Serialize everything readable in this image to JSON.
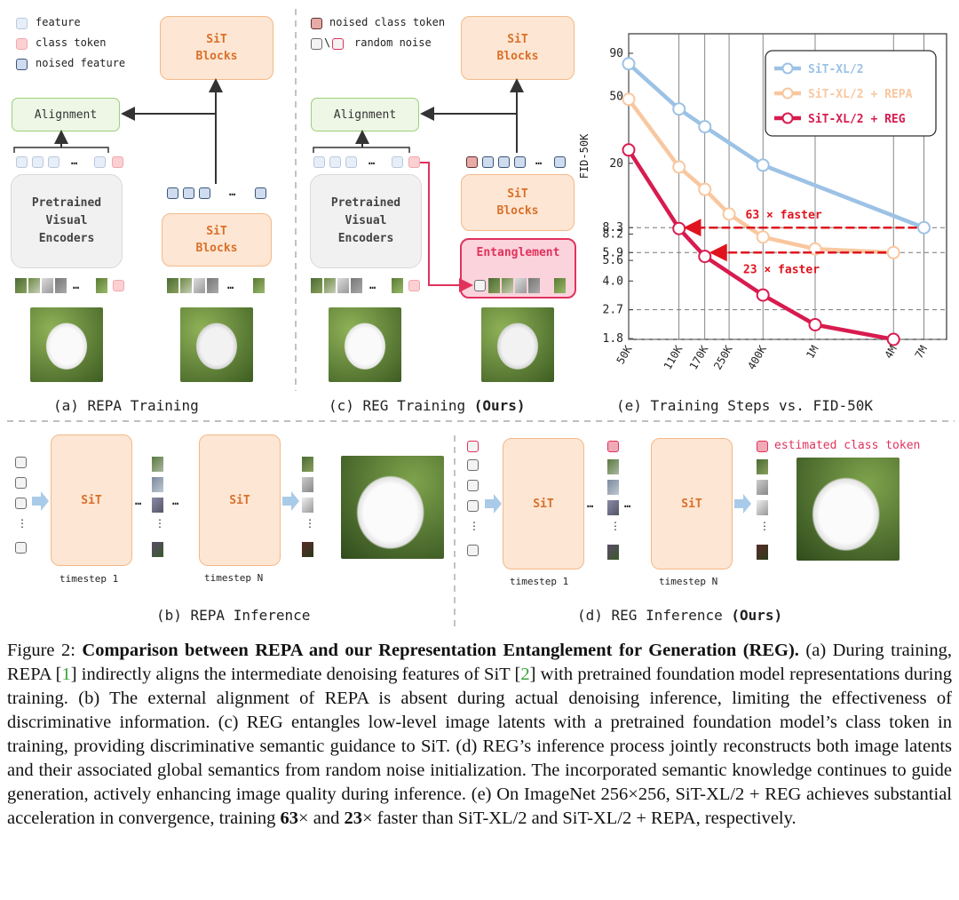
{
  "legend_a": {
    "feature": "feature",
    "class_token": "class token",
    "noised_feature": "noised feature"
  },
  "legend_c": {
    "noised_class_token": "noised class token",
    "random_noise": "random noise",
    "slash": "\\"
  },
  "blocks": {
    "sit_blocks": "SiT\nBlocks",
    "sit": "SiT",
    "alignment": "Alignment",
    "pretrained": "Pretrained\nVisual\nEncoders",
    "entanglement": "Entanglement",
    "ellipsis": "…",
    "vdots": "⋮"
  },
  "panels": {
    "a": "(a) REPA Training",
    "b": "(b) REPA Inference",
    "c_pre": "(c) REG Training ",
    "c_bold": "(Ours)",
    "d_pre": "(d) REG Inference ",
    "d_bold": "(Ours)",
    "e": "(e) Training Steps vs. FID-50K"
  },
  "inference": {
    "timestep1": "timestep 1",
    "timestepN": "timestep N",
    "estimated": "estimated class token"
  },
  "colors": {
    "blue": "#9cc2e5",
    "peach": "#f9c79f",
    "red": "#d81b4f",
    "orange_text": "#d9702a"
  },
  "chart_data": {
    "type": "line",
    "title": "",
    "xlabel": "",
    "ylabel": "FID-50K",
    "x_ticks": [
      "50K",
      "110K",
      "170K",
      "250K",
      "400K",
      "1M",
      "4M",
      "7M"
    ],
    "y_ticks": [
      90,
      50,
      20,
      8.3,
      8.2,
      5.9,
      5.6,
      4.0,
      2.7,
      1.8
    ],
    "y_tick_labels": [
      "90",
      "50",
      "20",
      "8.3",
      "8.2",
      "5.9",
      "5.6",
      "4.0",
      "2.7",
      "1.8"
    ],
    "series": [
      {
        "name": "SiT-XL/2",
        "color": "#9cc2e5",
        "x": [
          "50K",
          "110K",
          "170K",
          "400K",
          "7M"
        ],
        "values": [
          78,
          42,
          33,
          19.5,
          8.3
        ]
      },
      {
        "name": "SiT-XL/2 + REPA",
        "color": "#f9c79f",
        "x": [
          "50K",
          "110K",
          "170K",
          "250K",
          "400K",
          "1M",
          "4M"
        ],
        "values": [
          48,
          19,
          14,
          10,
          7.3,
          6.2,
          5.9
        ]
      },
      {
        "name": "SiT-XL/2 + REG",
        "color": "#d81b4f",
        "x": [
          "50K",
          "110K",
          "170K",
          "400K",
          "1M",
          "4M"
        ],
        "values": [
          24,
          8.2,
          5.6,
          3.3,
          2.2,
          1.8
        ]
      }
    ],
    "annotations": [
      {
        "text": "63 × faster",
        "from": "7M",
        "to": "110K",
        "y": 8.3
      },
      {
        "text": "23 × faster",
        "from": "4M",
        "to": "170K",
        "y": 5.9
      }
    ],
    "legend_position": "top-right"
  },
  "caption": {
    "fig_label": "Figure 2: ",
    "title_bold": "Comparison between REPA and our Representation Entanglement for Generation (REG).",
    "s1": " (a) During training, REPA [",
    "ref1": "1",
    "s2": "] indirectly aligns the intermediate denoising features of SiT [",
    "ref2": "2",
    "s3": "] with pretrained foundation model representations during training. (b) The external alignment of REPA is absent during actual denoising inference, limiting the effectiveness of discriminative information. (c) REG entangles low-level image latents with a pretrained foundation model’s class token in training, providing discriminative semantic guidance to SiT. (d) REG’s inference process jointly reconstructs both image latents and their associated global semantics from random noise initialization.  The incorporated semantic knowledge continues to guide generation, actively enhancing image quality during inference. (e) On ImageNet 256×256, SiT-XL/2 + REG achieves substantial acceleration in convergence, training ",
    "b63": "63",
    "s4": "× and ",
    "b23": "23",
    "s5": "× faster than SiT-XL/2 and SiT-XL/2 + REPA, respectively."
  }
}
